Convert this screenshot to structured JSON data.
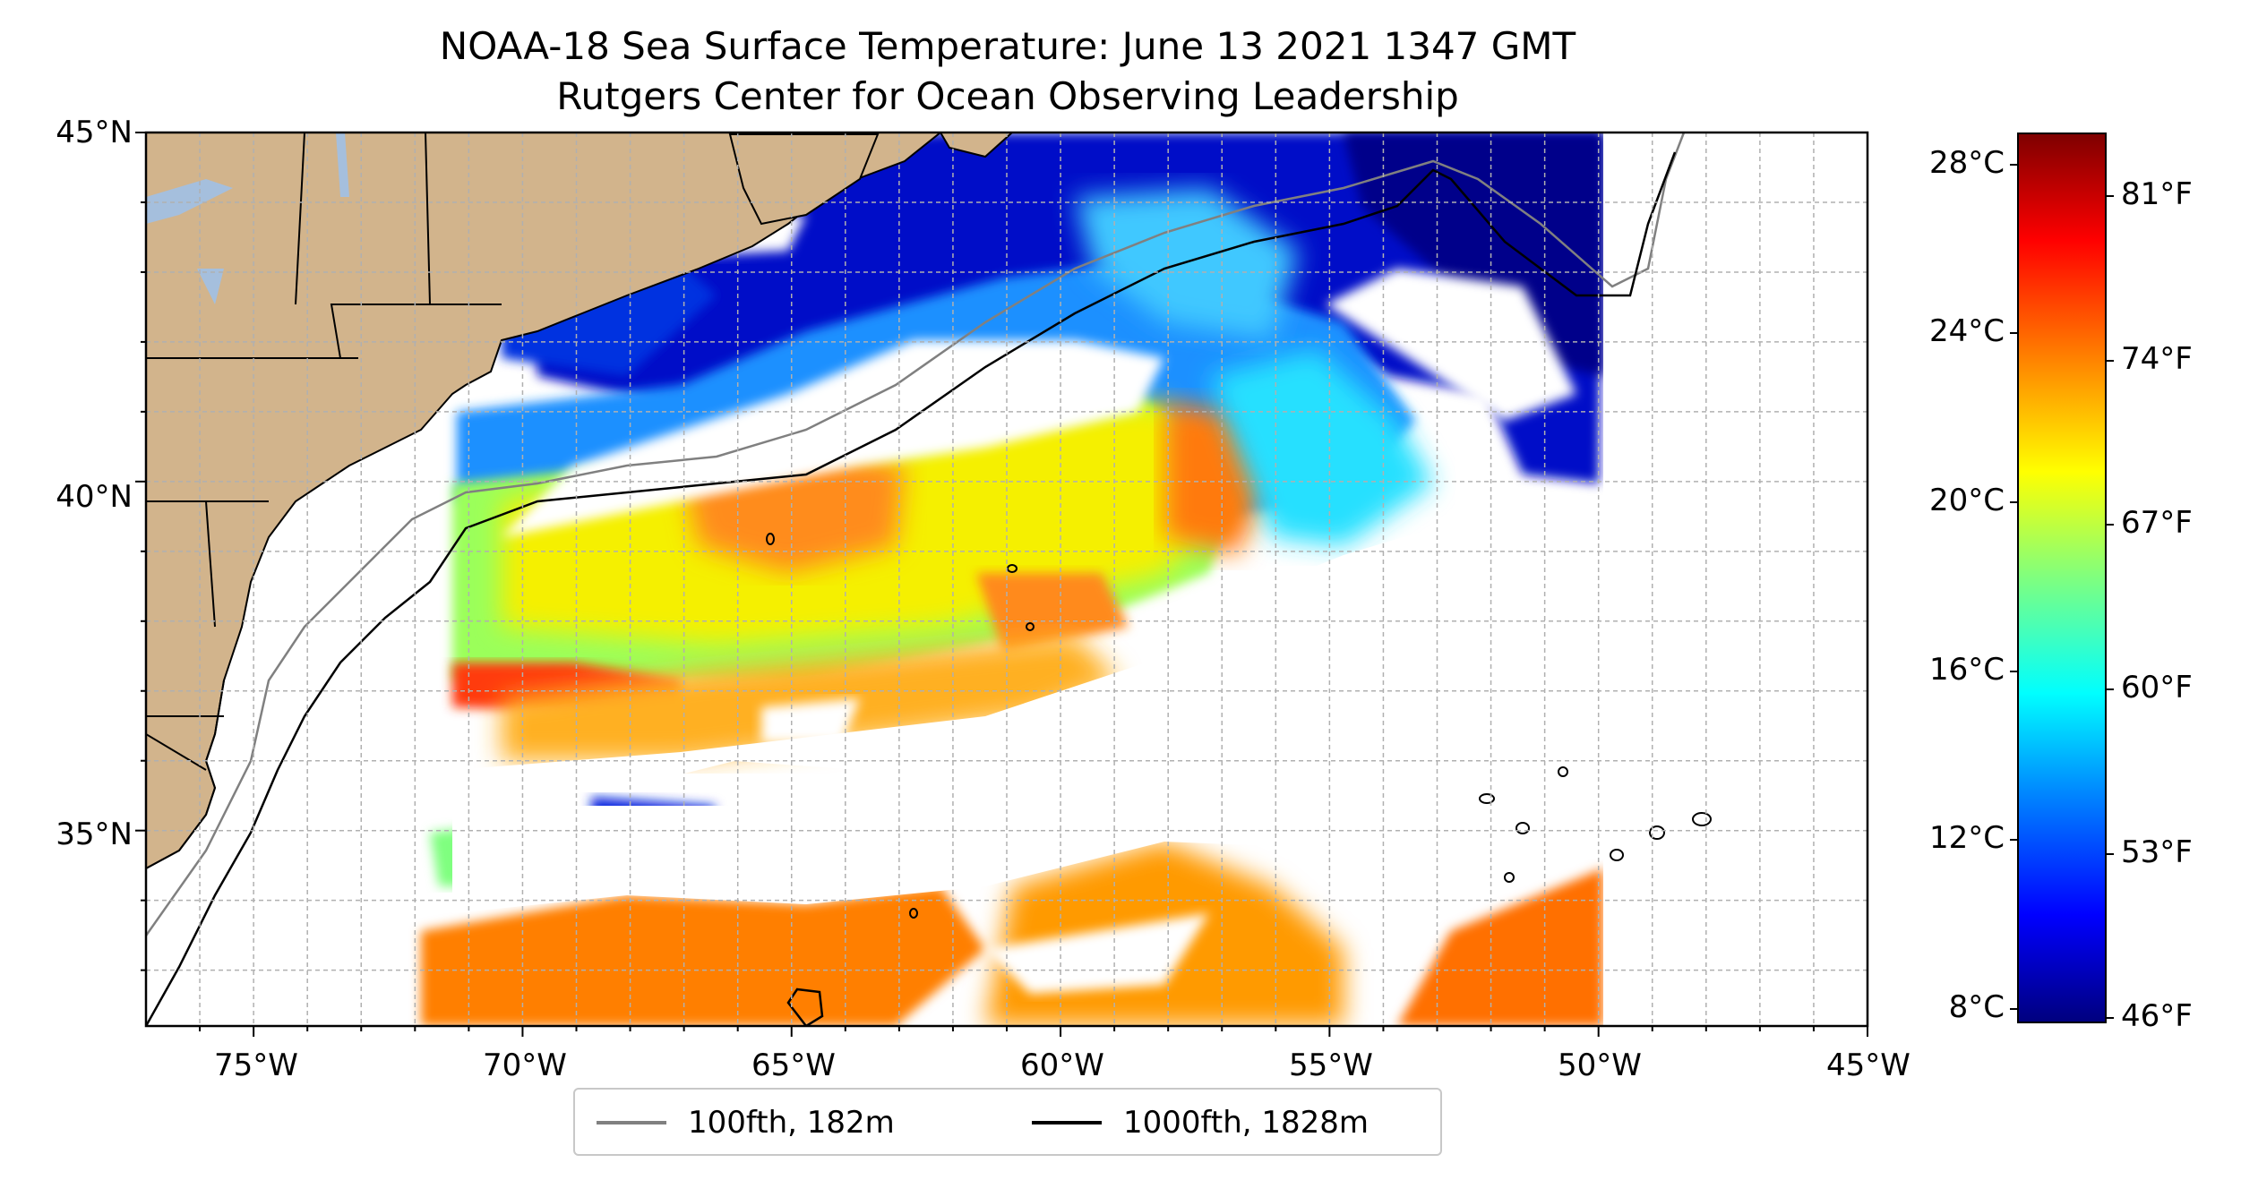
{
  "title_line1": "NOAA-18 Sea Surface Temperature: June 13 2021 1347 GMT",
  "title_line2": "Rutgers Center for Ocean Observing Leadership",
  "map": {
    "lon_ticks": [
      "75°W",
      "70°W",
      "65°W",
      "60°W",
      "55°W",
      "50°W",
      "45°W"
    ],
    "lat_ticks": [
      "45°N",
      "40°N",
      "35°N"
    ],
    "extent": {
      "lon_min": -77,
      "lon_max": -45,
      "lat_min": 32.2,
      "lat_max": 45
    },
    "land_color": "#d2b48c",
    "lake_color": "#a5bfdd",
    "gridlines": "dashed gray"
  },
  "colorbar": {
    "celsius_ticks": [
      "28°C",
      "24°C",
      "20°C",
      "16°C",
      "12°C",
      "8°C"
    ],
    "fahrenheit_ticks": [
      "81°F",
      "74°F",
      "67°F",
      "60°F",
      "53°F",
      "46°F"
    ],
    "colormap": "jet",
    "range_c": [
      7.6,
      28.6
    ]
  },
  "legend": {
    "items": [
      {
        "label": "100fth, 182m",
        "color": "#808080"
      },
      {
        "label": "1000fth, 1828m",
        "color": "#000000"
      }
    ]
  }
}
